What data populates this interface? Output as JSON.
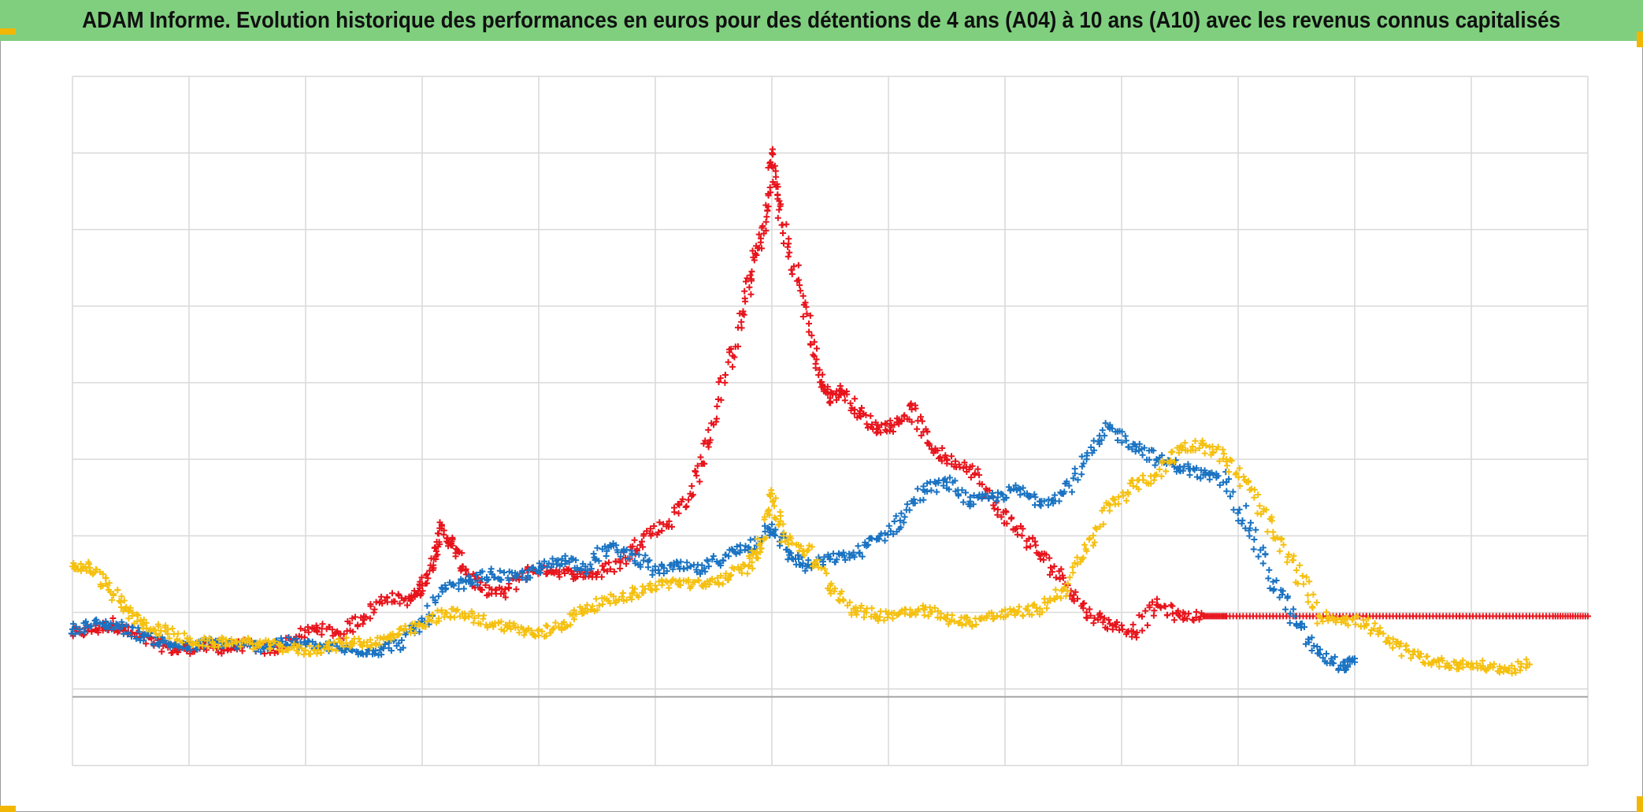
{
  "title": "ADAM Informe. Evolution historique des performances en euros pour des détentions de 4 ans (A04) à 10 ans (A10) avec les revenus connus capitalisés",
  "colors": {
    "title_bg": "#7fcf7f",
    "grid": "#d9d9d9",
    "baseline": "#a6a6a6",
    "accent_corner": "#f2b705"
  },
  "chart_data": {
    "type": "scatter",
    "marker": "plus",
    "title": "ADAM Informe. Evolution historique des performances en euros pour des détentions de 4 ans (A04) à 10 ans (A10) avec les revenus connus capitalisés",
    "xlabel": "",
    "ylabel": "",
    "xlim": [
      0,
      13
    ],
    "ylim": [
      -1,
      8
    ],
    "grid": true,
    "legend": "none",
    "tick_labels_shown": false,
    "series": [
      {
        "color": "#e8141c",
        "points": [
          [
            0,
            0.72
          ],
          [
            0.2,
            0.78
          ],
          [
            0.35,
            0.85
          ],
          [
            0.5,
            0.72
          ],
          [
            0.7,
            0.6
          ],
          [
            0.9,
            0.5
          ],
          [
            1.1,
            0.55
          ],
          [
            1.3,
            0.52
          ],
          [
            1.5,
            0.58
          ],
          [
            1.7,
            0.5
          ],
          [
            1.9,
            0.65
          ],
          [
            2.1,
            0.8
          ],
          [
            2.3,
            0.72
          ],
          [
            2.5,
            0.95
          ],
          [
            2.7,
            1.2
          ],
          [
            2.9,
            1.15
          ],
          [
            3.0,
            1.35
          ],
          [
            3.1,
            1.7
          ],
          [
            3.15,
            2.1
          ],
          [
            3.25,
            1.9
          ],
          [
            3.35,
            1.6
          ],
          [
            3.5,
            1.3
          ],
          [
            3.7,
            1.25
          ],
          [
            3.9,
            1.55
          ],
          [
            4.1,
            1.55
          ],
          [
            4.3,
            1.5
          ],
          [
            4.5,
            1.5
          ],
          [
            4.7,
            1.65
          ],
          [
            4.9,
            2.0
          ],
          [
            5.1,
            2.15
          ],
          [
            5.3,
            2.55
          ],
          [
            5.45,
            3.2
          ],
          [
            5.6,
            4.1
          ],
          [
            5.75,
            4.9
          ],
          [
            5.85,
            5.6
          ],
          [
            5.95,
            6.1
          ],
          [
            6.0,
            7.0
          ],
          [
            6.05,
            6.4
          ],
          [
            6.15,
            5.7
          ],
          [
            6.3,
            4.9
          ],
          [
            6.4,
            4.1
          ],
          [
            6.5,
            3.8
          ],
          [
            6.6,
            3.9
          ],
          [
            6.75,
            3.6
          ],
          [
            6.9,
            3.4
          ],
          [
            7.05,
            3.45
          ],
          [
            7.2,
            3.65
          ],
          [
            7.35,
            3.2
          ],
          [
            7.5,
            3.0
          ],
          [
            7.7,
            2.9
          ],
          [
            7.9,
            2.4
          ],
          [
            8.1,
            2.1
          ],
          [
            8.3,
            1.75
          ],
          [
            8.5,
            1.45
          ],
          [
            8.7,
            1.0
          ],
          [
            8.9,
            0.85
          ],
          [
            9.1,
            0.75
          ],
          [
            9.3,
            1.1
          ],
          [
            9.5,
            0.95
          ],
          [
            9.7,
            0.95
          ],
          [
            9.9,
            0.95
          ],
          [
            10.3,
            0.95
          ],
          [
            10.7,
            0.95
          ],
          [
            11.1,
            0.95
          ],
          [
            11.5,
            0.95
          ],
          [
            11.9,
            0.95
          ],
          [
            12.3,
            0.95
          ],
          [
            12.7,
            0.95
          ],
          [
            13.0,
            0.95
          ]
        ]
      },
      {
        "color": "#1a73c2",
        "points": [
          [
            0,
            0.78
          ],
          [
            0.2,
            0.85
          ],
          [
            0.4,
            0.82
          ],
          [
            0.6,
            0.7
          ],
          [
            0.8,
            0.6
          ],
          [
            1.0,
            0.55
          ],
          [
            1.2,
            0.6
          ],
          [
            1.4,
            0.58
          ],
          [
            1.6,
            0.55
          ],
          [
            1.8,
            0.62
          ],
          [
            2.0,
            0.58
          ],
          [
            2.2,
            0.55
          ],
          [
            2.4,
            0.5
          ],
          [
            2.6,
            0.5
          ],
          [
            2.8,
            0.6
          ],
          [
            3.0,
            0.85
          ],
          [
            3.2,
            1.3
          ],
          [
            3.4,
            1.4
          ],
          [
            3.6,
            1.5
          ],
          [
            3.8,
            1.45
          ],
          [
            4.0,
            1.55
          ],
          [
            4.2,
            1.7
          ],
          [
            4.4,
            1.6
          ],
          [
            4.6,
            1.85
          ],
          [
            4.8,
            1.75
          ],
          [
            5.0,
            1.55
          ],
          [
            5.2,
            1.6
          ],
          [
            5.4,
            1.55
          ],
          [
            5.6,
            1.75
          ],
          [
            5.8,
            1.85
          ],
          [
            6.0,
            2.15
          ],
          [
            6.15,
            1.75
          ],
          [
            6.3,
            1.6
          ],
          [
            6.5,
            1.7
          ],
          [
            6.7,
            1.75
          ],
          [
            6.9,
            1.95
          ],
          [
            7.1,
            2.2
          ],
          [
            7.3,
            2.6
          ],
          [
            7.5,
            2.7
          ],
          [
            7.7,
            2.45
          ],
          [
            7.9,
            2.5
          ],
          [
            8.1,
            2.6
          ],
          [
            8.3,
            2.45
          ],
          [
            8.5,
            2.55
          ],
          [
            8.7,
            3.0
          ],
          [
            8.9,
            3.4
          ],
          [
            9.1,
            3.2
          ],
          [
            9.3,
            3.0
          ],
          [
            9.5,
            2.9
          ],
          [
            9.7,
            2.8
          ],
          [
            9.9,
            2.7
          ],
          [
            10.1,
            2.1
          ],
          [
            10.3,
            1.4
          ],
          [
            10.5,
            0.85
          ],
          [
            10.7,
            0.45
          ],
          [
            10.9,
            0.3
          ],
          [
            11.0,
            0.35
          ]
        ]
      },
      {
        "color": "#f5c00f",
        "points": [
          [
            0,
            1.6
          ],
          [
            0.15,
            1.58
          ],
          [
            0.3,
            1.35
          ],
          [
            0.45,
            1.05
          ],
          [
            0.6,
            0.85
          ],
          [
            0.8,
            0.75
          ],
          [
            1.0,
            0.62
          ],
          [
            1.2,
            0.6
          ],
          [
            1.4,
            0.62
          ],
          [
            1.6,
            0.58
          ],
          [
            1.8,
            0.55
          ],
          [
            2.0,
            0.5
          ],
          [
            2.2,
            0.55
          ],
          [
            2.4,
            0.62
          ],
          [
            2.6,
            0.6
          ],
          [
            2.8,
            0.72
          ],
          [
            3.0,
            0.82
          ],
          [
            3.2,
            1.0
          ],
          [
            3.4,
            0.95
          ],
          [
            3.6,
            0.85
          ],
          [
            3.8,
            0.8
          ],
          [
            4.0,
            0.7
          ],
          [
            4.2,
            0.85
          ],
          [
            4.4,
            1.05
          ],
          [
            4.6,
            1.15
          ],
          [
            4.8,
            1.25
          ],
          [
            5.0,
            1.35
          ],
          [
            5.2,
            1.4
          ],
          [
            5.4,
            1.35
          ],
          [
            5.6,
            1.45
          ],
          [
            5.8,
            1.6
          ],
          [
            5.9,
            1.9
          ],
          [
            6.0,
            2.55
          ],
          [
            6.1,
            2.0
          ],
          [
            6.3,
            1.8
          ],
          [
            6.5,
            1.35
          ],
          [
            6.7,
            1.05
          ],
          [
            6.9,
            0.95
          ],
          [
            7.1,
            1.0
          ],
          [
            7.3,
            1.05
          ],
          [
            7.5,
            0.92
          ],
          [
            7.7,
            0.88
          ],
          [
            7.9,
            0.95
          ],
          [
            8.1,
            1.0
          ],
          [
            8.3,
            1.05
          ],
          [
            8.5,
            1.3
          ],
          [
            8.7,
            1.8
          ],
          [
            8.9,
            2.4
          ],
          [
            9.1,
            2.65
          ],
          [
            9.3,
            2.8
          ],
          [
            9.5,
            3.15
          ],
          [
            9.7,
            3.2
          ],
          [
            9.9,
            3.0
          ],
          [
            10.1,
            2.6
          ],
          [
            10.3,
            2.05
          ],
          [
            10.5,
            1.55
          ],
          [
            10.7,
            0.95
          ],
          [
            10.9,
            0.92
          ],
          [
            11.1,
            0.85
          ],
          [
            11.3,
            0.6
          ],
          [
            11.5,
            0.45
          ],
          [
            11.7,
            0.35
          ],
          [
            11.9,
            0.32
          ],
          [
            12.1,
            0.3
          ],
          [
            12.3,
            0.25
          ],
          [
            12.5,
            0.32
          ]
        ]
      }
    ]
  }
}
